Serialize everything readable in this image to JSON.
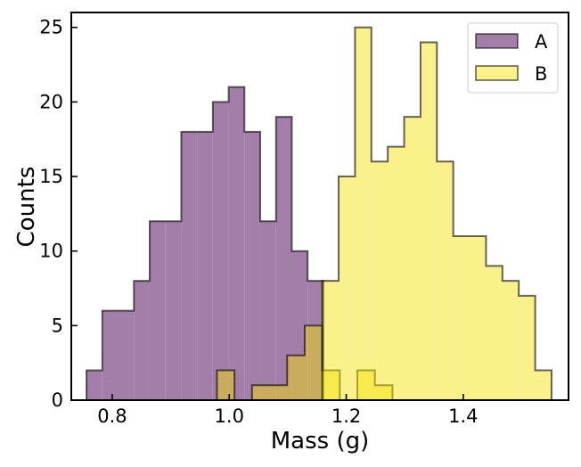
{
  "chart_data": {
    "type": "histogram",
    "xlabel": "Mass (g)",
    "ylabel": "Counts",
    "xlim": [
      0.73,
      1.58
    ],
    "ylim": [
      0,
      26
    ],
    "xticks": [
      0.8,
      1.0,
      1.2,
      1.4
    ],
    "xtick_labels": [
      "0.8",
      "1.0",
      "1.2",
      "1.4"
    ],
    "yticks": [
      0,
      5,
      10,
      15,
      20,
      25
    ],
    "ytick_labels": [
      "0",
      "5",
      "10",
      "15",
      "20",
      "25"
    ],
    "legend_position": "top-right",
    "series": [
      {
        "name": "A",
        "color": "#a27ea8",
        "opacity": 1.0,
        "bin_edges": [
          0.756,
          0.783,
          0.81,
          0.837,
          0.864,
          0.891,
          0.918,
          0.945,
          0.972,
          0.999,
          1.026,
          1.053,
          1.08,
          1.107,
          1.134,
          1.161
        ],
        "counts": [
          2,
          6,
          6,
          8,
          12,
          12,
          18,
          18,
          20,
          21,
          18,
          12,
          19,
          10,
          8
        ]
      },
      {
        "name": "B",
        "color": "#f5e10a",
        "opacity": 0.48,
        "bin_edges": [
          0.979,
          1.009,
          1.039,
          1.069,
          1.099,
          1.129,
          1.159,
          1.189,
          1.219,
          1.249,
          1.279
        ],
        "counts": [
          2,
          0,
          1,
          1,
          3,
          5,
          2,
          0,
          2,
          1
        ]
      },
      {
        "name": "B",
        "color": "#f5e10a",
        "opacity": 0.48,
        "bin_edges": [
          1.159,
          1.187,
          1.215,
          1.243,
          1.271,
          1.299,
          1.327,
          1.355,
          1.383,
          1.411,
          1.439,
          1.467,
          1.495,
          1.523,
          1.551
        ],
        "counts": [
          8,
          15,
          25,
          16,
          17,
          19,
          24,
          16,
          11,
          11,
          9,
          8,
          7,
          2
        ]
      }
    ],
    "legend": [
      {
        "label": "A",
        "color": "#a27ea8",
        "opacity": 1.0
      },
      {
        "label": "B",
        "color": "#f5e10a",
        "opacity": 0.48
      }
    ]
  }
}
